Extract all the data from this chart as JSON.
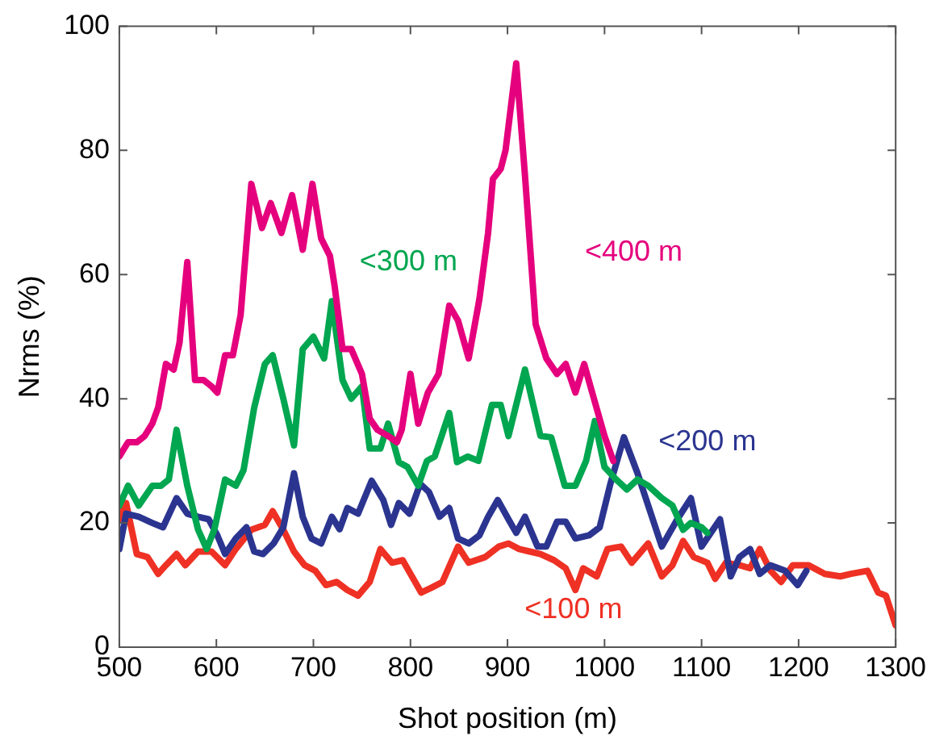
{
  "chart_data": {
    "type": "line",
    "xlabel": "Shot position (m)",
    "ylabel": "Nrms (%)",
    "xlim": [
      500,
      1300
    ],
    "xticks": [
      500,
      600,
      700,
      800,
      900,
      1000,
      1100,
      1200,
      1300
    ],
    "ylim": [
      0,
      100
    ],
    "yticks": [
      0,
      20,
      40,
      60,
      80,
      100
    ],
    "grid": false,
    "legend": false,
    "marker": "none",
    "line_style": "solid",
    "series": [
      {
        "name": "<400 m",
        "color": "#e5007d",
        "x": [
          500,
          509,
          518,
          526,
          534,
          540,
          548,
          556,
          562,
          570,
          578,
          587,
          595,
          601,
          609,
          617,
          625,
          636,
          647,
          656,
          667,
          678,
          689,
          699,
          708,
          717,
          722,
          730,
          739,
          750,
          758,
          766,
          777,
          786,
          791,
          800,
          808,
          818,
          829,
          840,
          849,
          860,
          871,
          880,
          885,
          893,
          898,
          909,
          918,
          929,
          940,
          951,
          960,
          970,
          979,
          990,
          1000,
          1009
        ],
        "values": [
          30.7,
          33,
          33,
          34,
          36,
          38.6,
          45.6,
          44.7,
          49,
          62,
          43,
          43,
          42,
          41,
          47,
          47,
          53.5,
          74.6,
          67.5,
          71.5,
          66.7,
          72.8,
          64,
          74.6,
          65.8,
          63,
          58,
          48,
          48,
          44,
          36.8,
          35,
          34,
          33,
          35,
          44,
          36,
          41,
          44,
          55,
          52.6,
          46.5,
          56,
          66.7,
          75.4,
          77,
          80,
          94,
          76,
          52,
          46.5,
          44,
          45.6,
          41,
          45.6,
          39.5,
          34,
          30
        ]
      },
      {
        "name": "<300 m",
        "color": "#00a650",
        "x": [
          500,
          509,
          520,
          534,
          543,
          551,
          559,
          570,
          581,
          590,
          598,
          609,
          620,
          628,
          639,
          650,
          658,
          669,
          680,
          689,
          700,
          711,
          719,
          730,
          739,
          750,
          758,
          769,
          777,
          788,
          797,
          808,
          817,
          825,
          840,
          848,
          859,
          870,
          884,
          893,
          901,
          918,
          934,
          945,
          959,
          970,
          981,
          990,
          1000,
          1012,
          1023,
          1034,
          1045,
          1059,
          1070,
          1081,
          1089,
          1100,
          1106
        ],
        "values": [
          22.8,
          26,
          22.8,
          26,
          26,
          27,
          35,
          26,
          19,
          15.8,
          19,
          27,
          26,
          28.5,
          38.6,
          45.6,
          47,
          40,
          32.5,
          48,
          50,
          46.5,
          55.7,
          43,
          40,
          42,
          32,
          32,
          36,
          29.8,
          29,
          26,
          30,
          30.7,
          37.7,
          29.8,
          30.7,
          30,
          39,
          39,
          34,
          44.7,
          34,
          33.8,
          26,
          26,
          30,
          36.4,
          29,
          27,
          25.4,
          27,
          26,
          24,
          22.8,
          18.9,
          20,
          19.3,
          18.4
        ]
      },
      {
        "name": "<200 m",
        "color": "#2b3590",
        "x": [
          500,
          507,
          520,
          534,
          545,
          559,
          570,
          581,
          592,
          601,
          609,
          620,
          631,
          639,
          648,
          659,
          669,
          680,
          689,
          698,
          708,
          719,
          727,
          735,
          746,
          760,
          772,
          780,
          788,
          799,
          810,
          819,
          830,
          840,
          849,
          860,
          871,
          880,
          890,
          901,
          909,
          918,
          931,
          940,
          951,
          960,
          970,
          984,
          995,
          1006,
          1020,
          1034,
          1045,
          1059,
          1075,
          1089,
          1100,
          1119,
          1130,
          1139,
          1150,
          1160,
          1171,
          1186,
          1199,
          1208
        ],
        "values": [
          15.8,
          21.5,
          21,
          20,
          19.3,
          24,
          21.5,
          21,
          20.6,
          18,
          15,
          17.5,
          19.3,
          15.4,
          15,
          16.7,
          19.3,
          28,
          21,
          17.5,
          16.7,
          21,
          19,
          22.4,
          21.5,
          26.8,
          23.7,
          19.7,
          23.2,
          21.5,
          26.3,
          25,
          21,
          22.4,
          17.5,
          16.7,
          18,
          21,
          23.7,
          20.6,
          18.4,
          21,
          16.2,
          16.2,
          20.2,
          20.2,
          17.5,
          18,
          19.3,
          26.3,
          33.8,
          28,
          22.8,
          16.2,
          20.6,
          24,
          16.2,
          20.6,
          11.4,
          14.5,
          15.8,
          11.8,
          13.2,
          12.3,
          10,
          12.3
        ]
      },
      {
        "name": "<100 m",
        "color": "#ee3124",
        "x": [
          500,
          507,
          518,
          529,
          540,
          548,
          559,
          568,
          581,
          595,
          609,
          620,
          636,
          650,
          658,
          669,
          680,
          691,
          702,
          713,
          724,
          735,
          746,
          758,
          769,
          781,
          792,
          811,
          822,
          833,
          849,
          860,
          877,
          891,
          901,
          912,
          923,
          934,
          948,
          960,
          970,
          978,
          992,
          1003,
          1017,
          1028,
          1045,
          1059,
          1070,
          1081,
          1092,
          1106,
          1114,
          1125,
          1139,
          1150,
          1160,
          1171,
          1182,
          1194,
          1210,
          1227,
          1243,
          1254,
          1271,
          1282,
          1290,
          1300
        ],
        "values": [
          20.6,
          23.2,
          15,
          14.5,
          11.8,
          13.2,
          15,
          13.2,
          15.4,
          15.4,
          13.2,
          15.8,
          18.9,
          19.7,
          21.9,
          18.9,
          15.4,
          13.2,
          12.3,
          10,
          10.5,
          9.2,
          8.3,
          10.5,
          15.8,
          13.6,
          14,
          8.8,
          9.6,
          10.5,
          16.2,
          13.6,
          14.5,
          16.2,
          16.7,
          15.8,
          15.4,
          15,
          14,
          12.7,
          9.2,
          12.7,
          11.4,
          15.8,
          16.2,
          13.6,
          16.7,
          11.4,
          13.2,
          17.1,
          14.5,
          13.6,
          11,
          13.6,
          13.2,
          12.7,
          15.8,
          12.3,
          10.5,
          13.2,
          13.2,
          11.8,
          11.4,
          11.8,
          12.3,
          8.8,
          8.3,
          3.5
        ]
      }
    ]
  }
}
